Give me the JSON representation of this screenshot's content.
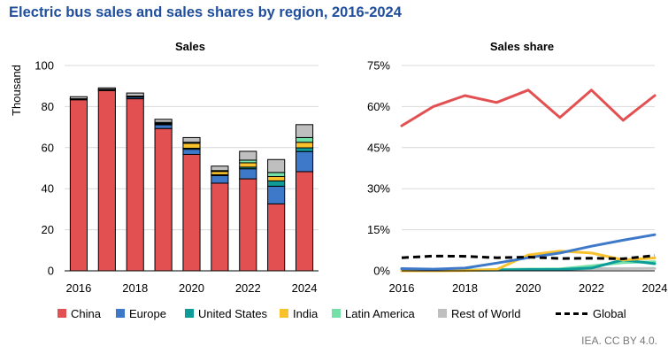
{
  "title": "Electric bus sales and sales shares by region, 2016-2024",
  "footer": "IEA. CC BY 4.0.",
  "colors": {
    "China": "#e35052",
    "Europe": "#3e79c9",
    "United States": "#0e9c99",
    "India": "#f9c22d",
    "Latin America": "#72e0a7",
    "Rest of World": "#bfbfbf",
    "Global": "#000000"
  },
  "legend": [
    {
      "label": "China",
      "kind": "swatch",
      "color": "#e35052"
    },
    {
      "label": "Europe",
      "kind": "swatch",
      "color": "#3e79c9"
    },
    {
      "label": "United States",
      "kind": "swatch",
      "color": "#0e9c99"
    },
    {
      "label": "India",
      "kind": "swatch",
      "color": "#f9c22d"
    },
    {
      "label": "Latin America",
      "kind": "swatch",
      "color": "#72e0a7"
    },
    {
      "label": "Rest of World",
      "kind": "swatch",
      "color": "#bfbfbf"
    },
    {
      "label": "Global",
      "kind": "dash",
      "color": "#000000"
    }
  ],
  "chart_data": [
    {
      "type": "bar",
      "stacked": true,
      "title": "Sales",
      "ylabel": "Thousand",
      "xlabel": "",
      "ylim": [
        0,
        100
      ],
      "yticks": [
        0,
        20,
        40,
        60,
        80,
        100
      ],
      "xtick_labels": [
        "2016",
        "2018",
        "2020",
        "2022",
        "2024"
      ],
      "categories": [
        "2016",
        "2017",
        "2018",
        "2019",
        "2020",
        "2021",
        "2022",
        "2023",
        "2024"
      ],
      "grid": "horizontal",
      "series": [
        {
          "name": "China",
          "values": [
            83.3,
            87.8,
            83.8,
            69.3,
            56.7,
            42.7,
            44.8,
            32.6,
            48.3
          ]
        },
        {
          "name": "Europe",
          "values": [
            0.3,
            0.4,
            0.8,
            1.8,
            2.5,
            3.7,
            4.9,
            8.6,
            9.8
          ]
        },
        {
          "name": "United States",
          "values": [
            0.1,
            0.1,
            0.2,
            0.3,
            0.5,
            0.4,
            0.8,
            2.6,
            1.8
          ]
        },
        {
          "name": "India",
          "values": [
            0.0,
            0.0,
            0.1,
            0.4,
            2.4,
            1.6,
            2.1,
            2.1,
            2.7
          ]
        },
        {
          "name": "Latin America",
          "values": [
            0.1,
            0.1,
            0.2,
            0.5,
            0.5,
            0.4,
            1.3,
            2.0,
            2.3
          ]
        },
        {
          "name": "Rest of World",
          "values": [
            1.0,
            0.7,
            1.5,
            1.5,
            2.3,
            2.2,
            4.3,
            6.3,
            6.3
          ]
        }
      ]
    },
    {
      "type": "line",
      "title": "Sales share",
      "xlabel": "",
      "ylabel": "",
      "x": [
        2016,
        2017,
        2018,
        2019,
        2020,
        2021,
        2022,
        2023,
        2024
      ],
      "xlim": [
        2016,
        2024
      ],
      "xtick_labels": [
        "2016",
        "2018",
        "2020",
        "2022",
        "2024"
      ],
      "ylim": [
        0,
        75
      ],
      "yticks": [
        0,
        15,
        30,
        45,
        60,
        75
      ],
      "ytick_labels": [
        "0%",
        "15%",
        "30%",
        "45%",
        "60%",
        "75%"
      ],
      "grid": "horizontal",
      "series": [
        {
          "name": "China",
          "values": [
            53,
            60,
            64,
            61.5,
            66,
            56,
            66,
            55,
            64
          ]
        },
        {
          "name": "Europe",
          "values": [
            0.8,
            0.6,
            1.0,
            2.8,
            4.8,
            6.5,
            9.0,
            11.2,
            13.2
          ]
        },
        {
          "name": "United States",
          "values": [
            0.1,
            0.1,
            0.2,
            0.3,
            0.5,
            0.5,
            1.0,
            4.0,
            2.6
          ]
        },
        {
          "name": "India",
          "values": [
            0.0,
            0.0,
            0.1,
            0.5,
            5.8,
            7.2,
            6.5,
            4.0,
            4.7
          ]
        },
        {
          "name": "Latin America",
          "values": [
            0.1,
            0.1,
            0.2,
            0.5,
            0.6,
            0.7,
            1.8,
            3.0,
            3.3
          ]
        },
        {
          "name": "Rest of World",
          "values": [
            0.2,
            0.2,
            0.3,
            0.4,
            0.6,
            0.5,
            0.8,
            0.8,
            0.9
          ]
        },
        {
          "name": "Global",
          "style": "dashed",
          "values": [
            4.8,
            5.4,
            5.3,
            4.8,
            5.0,
            4.5,
            4.6,
            4.4,
            5.6
          ]
        }
      ]
    }
  ]
}
